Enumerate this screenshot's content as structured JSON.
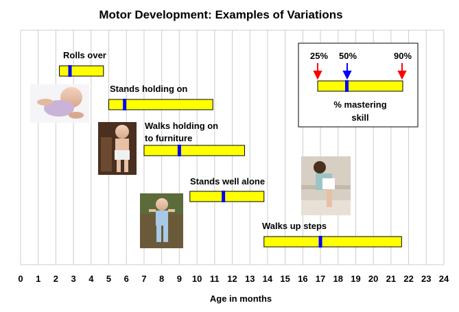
{
  "chart_data": {
    "type": "bar",
    "title": "Motor Development: Examples of Variations",
    "xlabel": "Age in months",
    "ylabel": "",
    "xlim": [
      0,
      24
    ],
    "xticks": [
      "0",
      "1",
      "2",
      "3",
      "4",
      "5",
      "6",
      "7",
      "8",
      "9",
      "10",
      "11",
      "12",
      "13",
      "14",
      "15",
      "16",
      "17",
      "18",
      "19",
      "20",
      "21",
      "22",
      "23",
      "24"
    ],
    "grid": true,
    "colors": {
      "bar": "#ffff00",
      "median": "#0000ff",
      "percentile_arrow": "#ff0000",
      "outline": "#000000"
    },
    "milestones": [
      {
        "label_lines": [
          "Rolls over"
        ],
        "p25": 2.2,
        "p50": 2.8,
        "p90": 4.7
      },
      {
        "label_lines": [
          "Stands holding on"
        ],
        "p25": 5.0,
        "p50": 5.9,
        "p90": 10.9
      },
      {
        "label_lines": [
          "Walks holding on",
          "to furniture"
        ],
        "p25": 7.0,
        "p50": 9.0,
        "p90": 12.7
      },
      {
        "label_lines": [
          "Stands well alone"
        ],
        "p25": 9.6,
        "p50": 11.5,
        "p90": 13.8
      },
      {
        "label_lines": [
          "Walks up steps"
        ],
        "p25": 13.8,
        "p50": 17.0,
        "p90": 21.6
      }
    ],
    "legend": {
      "labels": [
        "25%",
        "50%",
        "90%"
      ],
      "caption_lines": [
        "% mastering",
        "skill"
      ]
    },
    "photos": [
      {
        "name": "baby-rolling-photo"
      },
      {
        "name": "baby-standing-holding-photo"
      },
      {
        "name": "toddler-standing-alone-photo"
      },
      {
        "name": "toddler-climbing-steps-photo"
      }
    ]
  }
}
